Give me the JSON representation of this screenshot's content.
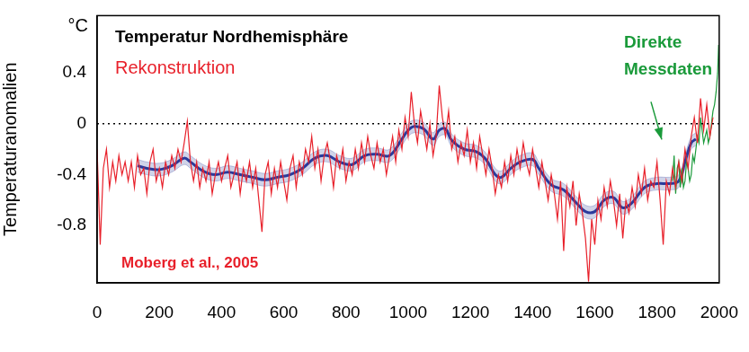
{
  "chart_data": {
    "type": "line",
    "title": "Temperatur Nordhemisphäre",
    "y_label": "Temperaturanomalien",
    "y_unit": "°C",
    "annotations": [
      "Moberg et al., 2005"
    ],
    "xlim": [
      0,
      2000
    ],
    "xticks": [
      0,
      200,
      400,
      600,
      800,
      1000,
      1200,
      1400,
      1600,
      1800,
      2000
    ],
    "ylim": [
      -1.25,
      0.85
    ],
    "yticks": [
      -0.8,
      -0.4,
      0,
      0.4
    ],
    "grid": false,
    "series": [
      {
        "name": "Rekonstruktion",
        "color": "#e8202a",
        "x": [
          0,
          10,
          20,
          30,
          40,
          50,
          60,
          70,
          80,
          90,
          100,
          110,
          120,
          130,
          140,
          150,
          160,
          170,
          180,
          190,
          200,
          210,
          220,
          230,
          240,
          250,
          260,
          270,
          280,
          290,
          300,
          310,
          320,
          330,
          340,
          350,
          360,
          370,
          380,
          390,
          400,
          410,
          420,
          430,
          440,
          450,
          460,
          470,
          480,
          490,
          500,
          510,
          520,
          530,
          540,
          550,
          560,
          570,
          580,
          590,
          600,
          610,
          620,
          630,
          640,
          650,
          660,
          670,
          680,
          690,
          700,
          710,
          720,
          730,
          740,
          750,
          760,
          770,
          780,
          790,
          800,
          810,
          820,
          830,
          840,
          850,
          860,
          870,
          880,
          890,
          900,
          910,
          920,
          930,
          940,
          950,
          960,
          970,
          980,
          990,
          1000,
          1010,
          1020,
          1030,
          1040,
          1050,
          1060,
          1070,
          1080,
          1090,
          1100,
          1110,
          1120,
          1130,
          1140,
          1150,
          1160,
          1170,
          1180,
          1190,
          1200,
          1210,
          1220,
          1230,
          1240,
          1250,
          1260,
          1270,
          1280,
          1290,
          1300,
          1310,
          1320,
          1330,
          1340,
          1350,
          1360,
          1370,
          1380,
          1390,
          1400,
          1410,
          1420,
          1430,
          1440,
          1450,
          1460,
          1470,
          1480,
          1490,
          1500,
          1510,
          1520,
          1530,
          1540,
          1550,
          1560,
          1570,
          1580,
          1590,
          1600,
          1610,
          1620,
          1630,
          1640,
          1650,
          1660,
          1670,
          1680,
          1690,
          1700,
          1710,
          1720,
          1730,
          1740,
          1750,
          1760,
          1770,
          1780,
          1790,
          1800,
          1810,
          1820,
          1830,
          1840,
          1850,
          1860,
          1870,
          1880,
          1890,
          1900,
          1910,
          1920,
          1930,
          1940,
          1950,
          1960,
          1970,
          1980
        ],
        "values": [
          -0.2,
          -0.95,
          -0.35,
          -0.2,
          -0.5,
          -0.3,
          -0.45,
          -0.25,
          -0.4,
          -0.3,
          -0.45,
          -0.3,
          -0.5,
          -0.25,
          -0.4,
          -0.35,
          -0.55,
          -0.3,
          -0.2,
          -0.45,
          -0.35,
          -0.5,
          -0.3,
          -0.4,
          -0.25,
          -0.35,
          -0.2,
          -0.3,
          -0.15,
          0.02,
          -0.3,
          -0.45,
          -0.3,
          -0.5,
          -0.35,
          -0.45,
          -0.3,
          -0.55,
          -0.4,
          -0.3,
          -0.45,
          -0.35,
          -0.25,
          -0.5,
          -0.4,
          -0.3,
          -0.55,
          -0.35,
          -0.45,
          -0.3,
          -0.5,
          -0.35,
          -0.6,
          -0.85,
          -0.4,
          -0.3,
          -0.55,
          -0.35,
          -0.5,
          -0.3,
          -0.45,
          -0.6,
          -0.35,
          -0.25,
          -0.5,
          -0.3,
          -0.4,
          -0.2,
          -0.3,
          -0.1,
          -0.35,
          -0.2,
          -0.45,
          -0.25,
          -0.15,
          -0.3,
          -0.5,
          -0.25,
          -0.35,
          -0.2,
          -0.45,
          -0.3,
          -0.4,
          -0.2,
          -0.35,
          -0.15,
          -0.3,
          -0.1,
          -0.25,
          -0.35,
          -0.15,
          -0.3,
          -0.2,
          -0.4,
          -0.25,
          -0.1,
          -0.3,
          -0.05,
          -0.2,
          0.05,
          -0.1,
          0.25,
          0.0,
          -0.15,
          0.1,
          -0.05,
          -0.2,
          0.0,
          -0.25,
          -0.1,
          0.3,
          0.05,
          -0.1,
          0.1,
          -0.2,
          -0.1,
          -0.3,
          -0.15,
          -0.25,
          -0.05,
          -0.3,
          -0.15,
          -0.35,
          -0.1,
          -0.25,
          -0.4,
          -0.2,
          -0.35,
          -0.55,
          -0.4,
          -0.5,
          -0.3,
          -0.45,
          -0.25,
          -0.4,
          -0.2,
          -0.35,
          -0.15,
          -0.3,
          -0.4,
          -0.2,
          -0.35,
          -0.5,
          -0.3,
          -0.45,
          -0.6,
          -0.4,
          -0.55,
          -0.75,
          -0.45,
          -1.0,
          -0.5,
          -0.65,
          -0.45,
          -0.8,
          -0.55,
          -0.7,
          -0.9,
          -1.24,
          -0.75,
          -0.95,
          -0.6,
          -0.75,
          -0.5,
          -0.65,
          -0.45,
          -0.6,
          -0.8,
          -0.55,
          -0.9,
          -0.6,
          -0.7,
          -0.5,
          -0.65,
          -0.4,
          -0.55,
          -0.35,
          -0.6,
          -0.45,
          -0.5,
          -0.3,
          -0.6,
          -0.95,
          -0.45,
          -0.55,
          -0.35,
          -0.5,
          -0.3,
          -0.45,
          -0.2,
          -0.35,
          -0.1,
          0.05,
          -0.15,
          0.2,
          -0.05,
          0.15,
          -0.1,
          0.05
        ]
      },
      {
        "name": "Direkte Messdaten",
        "color": "#1a9a3a",
        "x": [
          1850,
          1855,
          1860,
          1865,
          1870,
          1875,
          1880,
          1885,
          1890,
          1895,
          1900,
          1905,
          1910,
          1915,
          1920,
          1925,
          1930,
          1935,
          1940,
          1945,
          1950,
          1955,
          1960,
          1965,
          1970,
          1975,
          1980,
          1985,
          1990,
          1995,
          1998
        ],
        "values": [
          -0.45,
          -0.25,
          -0.55,
          -0.35,
          -0.3,
          -0.5,
          -0.35,
          -0.5,
          -0.45,
          -0.3,
          -0.35,
          -0.45,
          -0.4,
          -0.25,
          -0.3,
          -0.2,
          -0.1,
          -0.15,
          0.05,
          -0.05,
          -0.15,
          -0.1,
          -0.05,
          -0.15,
          -0.1,
          0.0,
          0.1,
          0.15,
          0.25,
          0.4,
          0.62
        ]
      },
      {
        "color": "#2b3a9c",
        "x": [
          130,
          160,
          200,
          240,
          280,
          300,
          340,
          380,
          420,
          460,
          500,
          540,
          580,
          620,
          660,
          700,
          740,
          780,
          820,
          860,
          900,
          940,
          980,
          1000,
          1020,
          1050,
          1080,
          1100,
          1120,
          1140,
          1180,
          1220,
          1250,
          1280,
          1300,
          1330,
          1360,
          1400,
          1420,
          1460,
          1500,
          1540,
          1570,
          1600,
          1630,
          1660,
          1690,
          1720,
          1760,
          1800,
          1840,
          1870,
          1890,
          1910,
          1925
        ],
        "values": [
          -0.33,
          -0.35,
          -0.36,
          -0.33,
          -0.27,
          -0.3,
          -0.37,
          -0.4,
          -0.38,
          -0.4,
          -0.42,
          -0.44,
          -0.42,
          -0.4,
          -0.35,
          -0.27,
          -0.25,
          -0.3,
          -0.32,
          -0.25,
          -0.24,
          -0.25,
          -0.12,
          -0.05,
          -0.02,
          -0.04,
          -0.12,
          -0.05,
          -0.04,
          -0.13,
          -0.2,
          -0.22,
          -0.28,
          -0.4,
          -0.42,
          -0.35,
          -0.3,
          -0.28,
          -0.35,
          -0.48,
          -0.52,
          -0.62,
          -0.69,
          -0.69,
          -0.6,
          -0.58,
          -0.66,
          -0.62,
          -0.5,
          -0.47,
          -0.47,
          -0.45,
          -0.3,
          -0.15,
          -0.12
        ],
        "lower": [
          -0.38,
          -0.4,
          -0.41,
          -0.38,
          -0.32,
          -0.35,
          -0.42,
          -0.45,
          -0.43,
          -0.45,
          -0.47,
          -0.49,
          -0.47,
          -0.45,
          -0.4,
          -0.32,
          -0.3,
          -0.35,
          -0.37,
          -0.3,
          -0.29,
          -0.3,
          -0.17,
          -0.1,
          -0.07,
          -0.09,
          -0.17,
          -0.1,
          -0.09,
          -0.18,
          -0.25,
          -0.27,
          -0.33,
          -0.45,
          -0.47,
          -0.4,
          -0.35,
          -0.33,
          -0.4,
          -0.53,
          -0.57,
          -0.67,
          -0.74,
          -0.74,
          -0.65,
          -0.63,
          -0.71,
          -0.67,
          -0.55,
          -0.52,
          -0.52,
          -0.5,
          -0.35,
          -0.2,
          -0.17
        ],
        "upper": [
          -0.28,
          -0.3,
          -0.31,
          -0.28,
          -0.22,
          -0.25,
          -0.32,
          -0.35,
          -0.33,
          -0.35,
          -0.37,
          -0.39,
          -0.37,
          -0.35,
          -0.3,
          -0.22,
          -0.2,
          -0.25,
          -0.27,
          -0.2,
          -0.19,
          -0.2,
          -0.07,
          0.0,
          0.03,
          0.01,
          -0.07,
          0.0,
          0.01,
          -0.08,
          -0.15,
          -0.17,
          -0.23,
          -0.35,
          -0.37,
          -0.3,
          -0.25,
          -0.23,
          -0.3,
          -0.43,
          -0.47,
          -0.57,
          -0.64,
          -0.64,
          -0.55,
          -0.53,
          -0.61,
          -0.57,
          -0.45,
          -0.42,
          -0.42,
          -0.4,
          -0.25,
          -0.1,
          -0.07
        ]
      }
    ]
  }
}
